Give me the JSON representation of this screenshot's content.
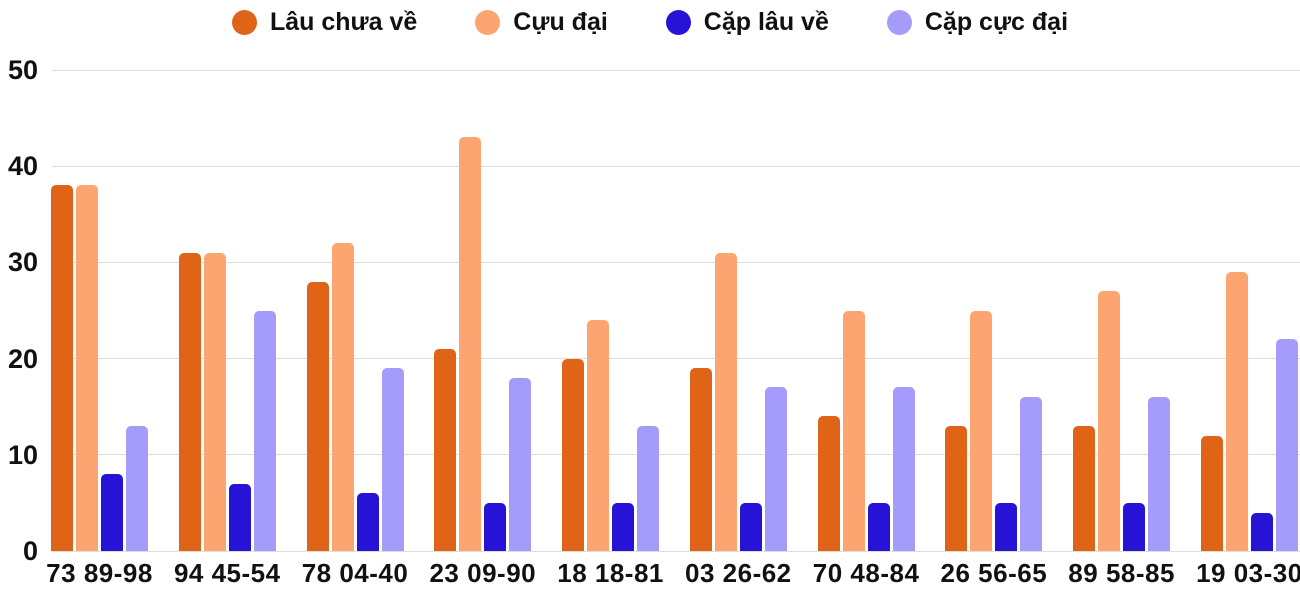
{
  "chart_data": {
    "type": "bar",
    "title": "",
    "categories": [
      "73 89-98",
      "94 45-54",
      "78 04-40",
      "23 09-90",
      "18 18-81",
      "03 26-62",
      "70 48-84",
      "26 56-65",
      "89 58-85",
      "19 03-30"
    ],
    "series": [
      {
        "name": "Lâu chưa về",
        "color": "#df6418",
        "values": [
          38,
          31,
          28,
          21,
          20,
          19,
          14,
          13,
          13,
          12
        ]
      },
      {
        "name": "Cựu đại",
        "color": "#fda570",
        "values": [
          38,
          31,
          32,
          43,
          24,
          31,
          25,
          25,
          27,
          29
        ]
      },
      {
        "name": "Cặp lâu về",
        "color": "#2713d6",
        "values": [
          8,
          7,
          6,
          5,
          5,
          5,
          5,
          5,
          5,
          4
        ]
      },
      {
        "name": "Cặp cực đại",
        "color": "#a49bfa",
        "values": [
          13,
          25,
          19,
          18,
          13,
          17,
          17,
          16,
          16,
          22
        ]
      }
    ],
    "xlabel": "",
    "ylabel": "",
    "ylim": [
      0,
      50
    ],
    "yticks": [
      0,
      10,
      20,
      30,
      40,
      50
    ],
    "grid": true,
    "legend_position": "top"
  },
  "colors": {
    "grid": "#dedede",
    "text": "#111111",
    "background": "#ffffff"
  }
}
